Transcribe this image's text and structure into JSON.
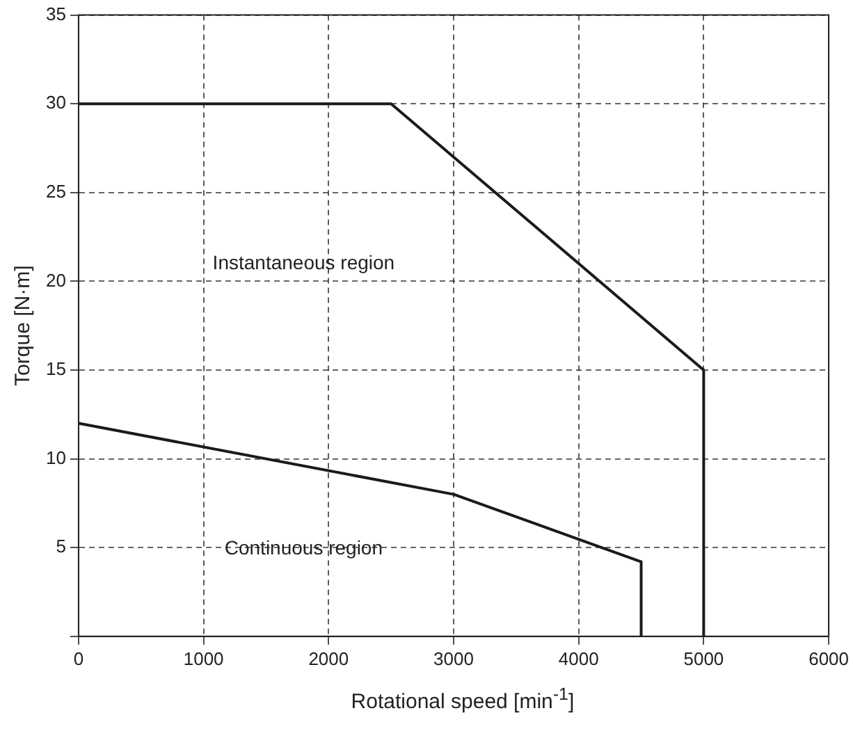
{
  "chart_data": {
    "type": "line",
    "xlabel": "Rotational speed [min$^{-1}$]",
    "ylabel": "Torque [N·m]",
    "xlim": [
      0,
      6000
    ],
    "xticks": [
      0,
      1000,
      2000,
      3000,
      4000,
      5000,
      6000
    ],
    "ylim": [
      0,
      35
    ],
    "yticks": [
      {
        "value": 0,
        "label": null
      },
      5,
      10,
      15,
      20,
      25,
      30,
      35
    ],
    "series": [
      {
        "color": "#1a1a1a",
        "x": [
          0,
          2500,
          5000,
          5000
        ],
        "values": [
          30,
          30,
          15,
          0
        ]
      },
      {
        "color": "#1a1a1a",
        "x": [
          0,
          3000,
          4500,
          4500
        ],
        "values": [
          12,
          8,
          4.2,
          0
        ]
      }
    ],
    "annotations": [
      "Instantaneous region",
      "Continuous region"
    ],
    "grid": true,
    "legend": false,
    "marker": "none",
    "line_style": "solid"
  }
}
